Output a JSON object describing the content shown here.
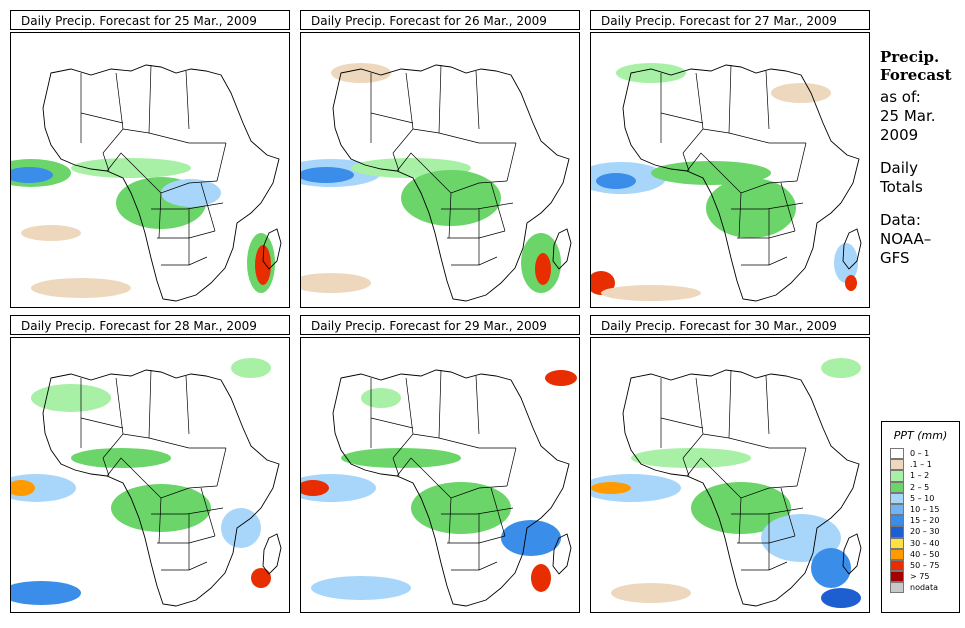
{
  "colors": {
    "class_0_1": "#ffffff",
    "class_01_1": "#eed8bd",
    "class_1_2": "#a7f0a5",
    "class_2_5": "#6bd56a",
    "class_5_10": "#a8d6fa",
    "class_10_15": "#6fb5f5",
    "class_15_20": "#3a8de8",
    "class_20_30": "#1d5ed0",
    "class_30_40": "#ffe040",
    "class_40_50": "#ff9a00",
    "class_50_75": "#e82d00",
    "class_gt75": "#a40000",
    "nodata": "#c8c8c8",
    "land_outline": "#000000"
  },
  "panels": [
    {
      "title": "Daily Precip. Forecast for  25 Mar., 2009",
      "date": "25 Mar., 2009"
    },
    {
      "title": "Daily Precip. Forecast for  26 Mar., 2009",
      "date": "26 Mar., 2009"
    },
    {
      "title": "Daily Precip. Forecast for  27 Mar., 2009",
      "date": "27 Mar., 2009"
    },
    {
      "title": "Daily Precip. Forecast for  28 Mar., 2009",
      "date": "28 Mar., 2009"
    },
    {
      "title": "Daily Precip. Forecast for  29 Mar., 2009",
      "date": "29 Mar., 2009"
    },
    {
      "title": "Daily Precip. Forecast for  30 Mar., 2009",
      "date": "30 Mar., 2009"
    }
  ],
  "side": {
    "title_line1": "Precip.",
    "title_line2": "Forecast",
    "asof_line1": "as of:",
    "asof_line2": "25 Mar.",
    "asof_line3": "2009",
    "totals_line1": "Daily",
    "totals_line2": "Totals",
    "data_line1": "Data:",
    "data_line2": "NOAA–",
    "data_line3": "GFS"
  },
  "legend": {
    "title": "PPT (mm)",
    "classes": [
      {
        "label": "0 – 1",
        "color_key": "class_0_1"
      },
      {
        "label": ".1 – 1",
        "color_key": "class_01_1"
      },
      {
        "label": "1 – 2",
        "color_key": "class_1_2"
      },
      {
        "label": "2 – 5",
        "color_key": "class_2_5"
      },
      {
        "label": "5 – 10",
        "color_key": "class_5_10"
      },
      {
        "label": "10 – 15",
        "color_key": "class_10_15"
      },
      {
        "label": "15 – 20",
        "color_key": "class_15_20"
      },
      {
        "label": "20 – 30",
        "color_key": "class_20_30"
      },
      {
        "label": "30 – 40",
        "color_key": "class_30_40"
      },
      {
        "label": "40 – 50",
        "color_key": "class_40_50"
      },
      {
        "label": "50 – 75",
        "color_key": "class_50_75"
      },
      {
        "label": "> 75",
        "color_key": "class_gt75"
      },
      {
        "label": "nodata",
        "color_key": "nodata"
      }
    ]
  }
}
